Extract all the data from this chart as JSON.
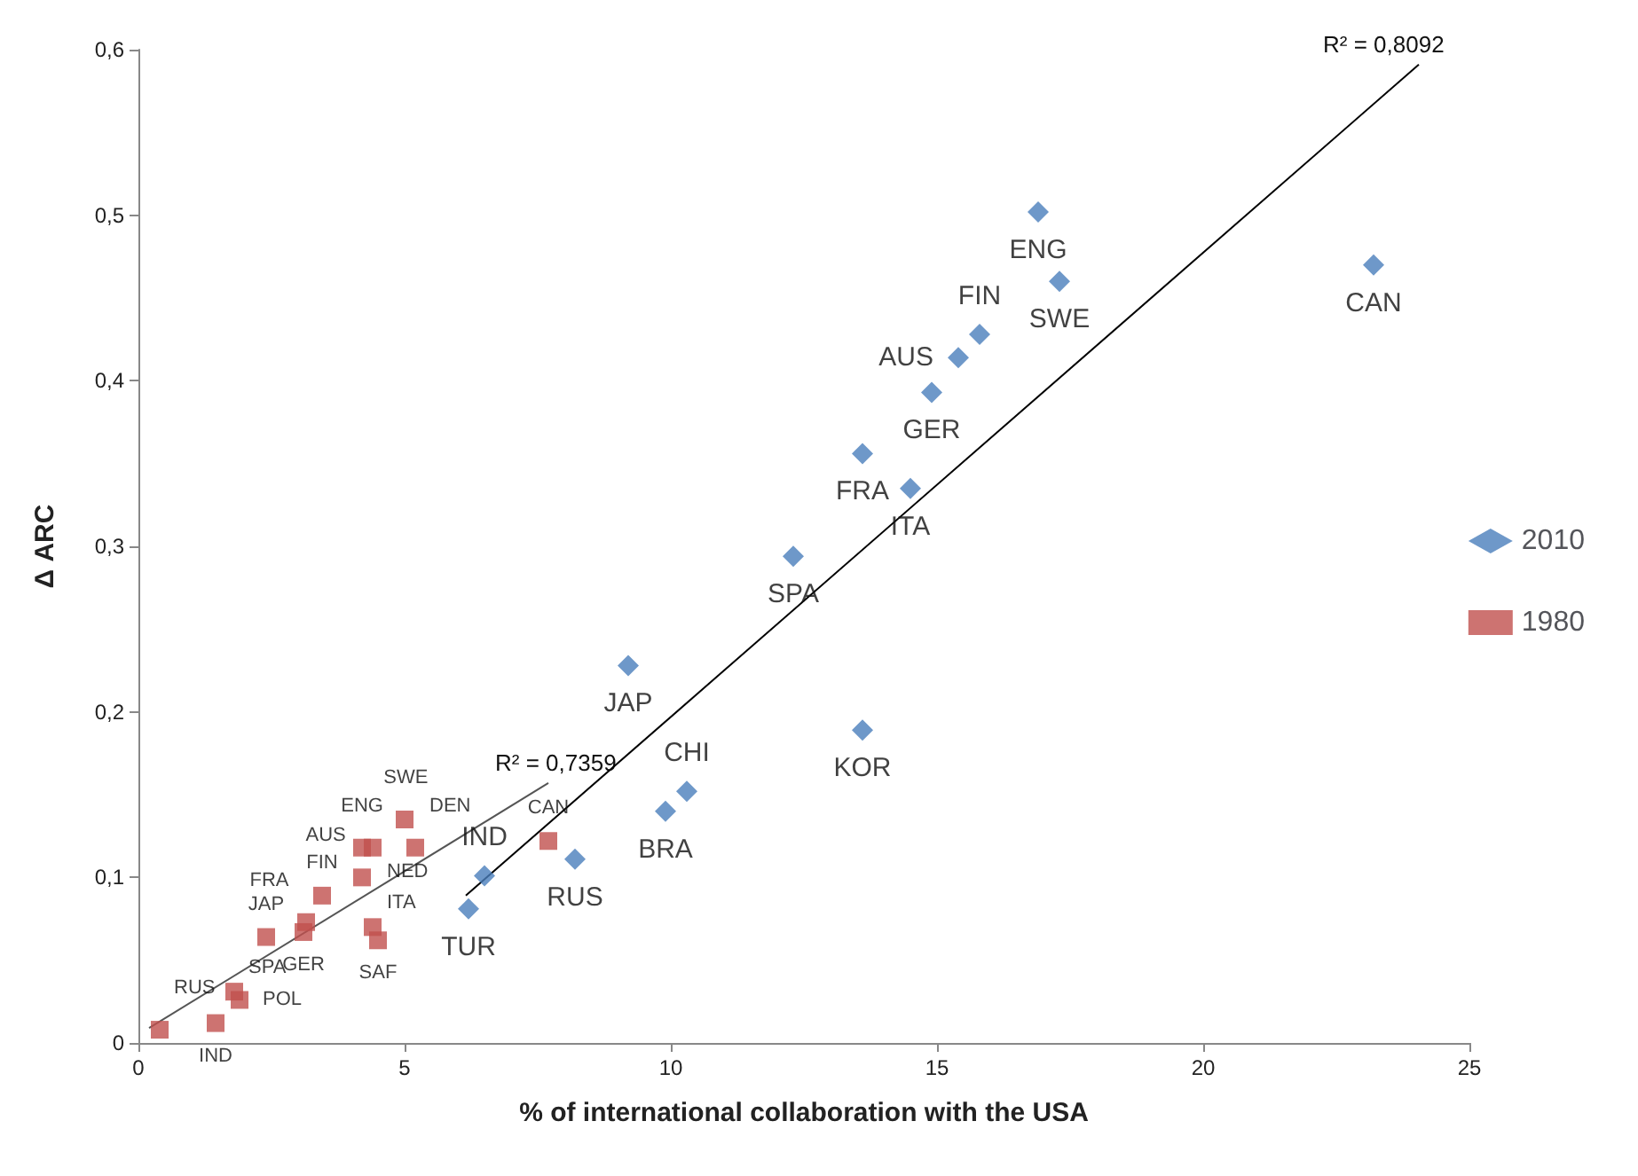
{
  "chart_data": {
    "type": "scatter",
    "xlabel": "% of international collaboration with the USA",
    "ylabel": "Δ ARC",
    "xlim": [
      0,
      25
    ],
    "xticks": [
      0,
      5,
      10,
      15,
      20,
      25
    ],
    "ylim": [
      0,
      0.6
    ],
    "yticks": [
      0,
      {
        "value": 0.1,
        "label": "0,1"
      },
      {
        "value": 0.2,
        "label": "0,2"
      },
      {
        "value": 0.3,
        "label": "0,3"
      },
      {
        "value": 0.4,
        "label": "0,4"
      },
      {
        "value": 0.5,
        "label": "0,5"
      },
      {
        "value": 0.6,
        "label": "0,6"
      }
    ],
    "grid": false,
    "legend": "right",
    "series": [
      {
        "name": "2010",
        "color": "#4a7ebb",
        "marker": "diamond",
        "x": [
          16.9,
          23.2,
          17.3,
          15.8,
          15.4,
          14.9,
          13.6,
          14.5,
          12.3,
          9.2,
          13.6,
          10.3,
          9.9,
          8.2,
          6.5,
          6.2
        ],
        "values": [
          0.502,
          0.47,
          0.46,
          0.428,
          0.414,
          0.393,
          0.356,
          0.335,
          0.294,
          0.228,
          0.189,
          0.152,
          0.14,
          0.111,
          0.101,
          0.081
        ],
        "value_labels": [
          "ENG",
          "CAN",
          "SWE",
          "FIN",
          "AUS",
          "GER",
          "FRA",
          "ITA",
          "SPA",
          "JAP",
          "KOR",
          "CHI",
          "BRA",
          "RUS",
          "IND",
          "TUR"
        ]
      },
      {
        "name": "1980",
        "color": "#c0504d",
        "marker": "square",
        "x": [
          5.0,
          4.4,
          4.2,
          5.2,
          4.2,
          3.45,
          3.15,
          3.1,
          2.4,
          4.4,
          4.5,
          1.8,
          1.9,
          1.45,
          0.4,
          7.7
        ],
        "values": [
          0.135,
          0.118,
          0.118,
          0.118,
          0.1,
          0.089,
          0.073,
          0.067,
          0.064,
          0.07,
          0.062,
          0.031,
          0.026,
          0.012,
          0.008,
          0.122
        ],
        "value_labels": [
          "SWE",
          "NED",
          "ENG",
          "DEN",
          "AUS",
          "FIN",
          "FRA",
          "GER",
          "JAP",
          "ITA",
          "SAF",
          "SPA",
          "POL",
          "IND",
          "RUS",
          "CAN"
        ]
      },
      {
        "type": "line",
        "color": "#000000",
        "x": [
          6.15,
          24.05
        ],
        "values": [
          0.089,
          0.591
        ]
      },
      {
        "type": "line",
        "color": "#555555",
        "x": [
          0.2,
          7.7
        ],
        "values": [
          0.009,
          0.157
        ]
      }
    ],
    "annotations": [
      "R² = 0,8092",
      "R² = 0,7359"
    ]
  }
}
